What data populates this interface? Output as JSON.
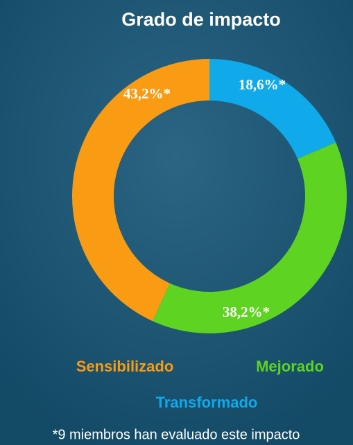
{
  "chart_data": {
    "type": "donut",
    "title": "Grado de impacto",
    "categories": [
      "Transformado",
      "Mejorado",
      "Sensibilizado"
    ],
    "values": [
      18.6,
      38.2,
      43.2
    ],
    "value_labels": [
      "18,6%*",
      "38,2%*",
      "43,2%*"
    ],
    "colors": [
      "#10a9e9",
      "#5ed321",
      "#f99c14"
    ],
    "footnote": "*9 miembros han evaluado este impacto"
  }
}
